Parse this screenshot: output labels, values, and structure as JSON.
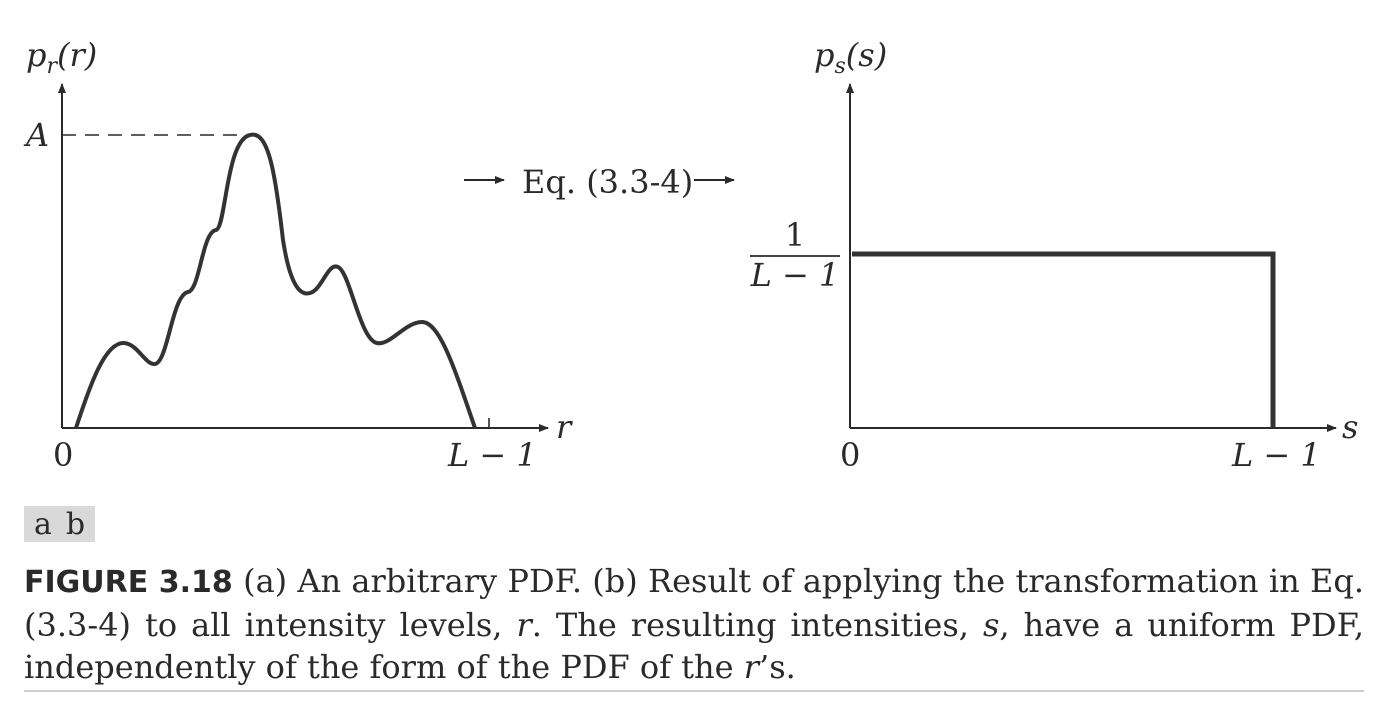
{
  "panels": {
    "a": {
      "ylabel": {
        "base": "p",
        "sub": "r",
        "arg": "(r)"
      },
      "xlabel": "r",
      "y_tick": "A",
      "x_ticks": [
        "0",
        "L − 1"
      ]
    },
    "b": {
      "ylabel": {
        "base": "p",
        "sub": "s",
        "arg": "(s)"
      },
      "xlabel": "s",
      "y_tick": {
        "numerator": "1",
        "denominator": "L − 1"
      },
      "x_ticks": [
        "0",
        "L − 1"
      ]
    }
  },
  "transform_label": "Eq. (3.3-4)",
  "panel_tags": [
    "a",
    "b"
  ],
  "caption": {
    "label": "FIGURE 3.18",
    "parts": [
      {
        "t": " (a) An arbitrary PDF. (b) Result of applying the transformation in Eq. (3.3-4) to all intensity levels, ",
        "i": false
      },
      {
        "t": "r",
        "i": true
      },
      {
        "t": ". The resulting intensities, ",
        "i": false
      },
      {
        "t": "s",
        "i": true
      },
      {
        "t": ", have a uniform PDF, independently of the form of the PDF of the ",
        "i": false
      },
      {
        "t": "r",
        "i": true
      },
      {
        "t": "’s.",
        "i": false
      }
    ]
  }
}
